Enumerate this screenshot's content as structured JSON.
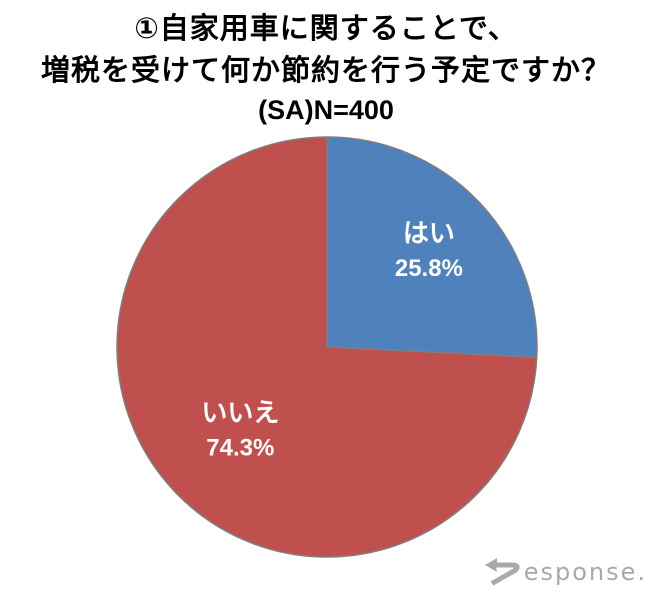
{
  "title": {
    "line1": "①自家用車に関することで、",
    "line2": "増税を受けて何か節約を行う予定ですか？",
    "line3": "(SA)N=400"
  },
  "chart_data": {
    "type": "pie",
    "title": "①自家用車に関することで、増税を受けて何か節約を行う予定ですか？(SA)N=400",
    "sample_size_label": "(SA)N=400",
    "n": 400,
    "labels": [
      "はい",
      "いいえ"
    ],
    "values": [
      25.8,
      74.3
    ],
    "value_labels": [
      "25.8%",
      "74.3%"
    ],
    "unit": "%",
    "start_angle_deg": 0,
    "direction": "clockwise",
    "colors": [
      "#4F81BD",
      "#C0504D"
    ],
    "slice_border_color": "#7F7F7F",
    "label_text_color": "#FFFFFF",
    "legend": "none",
    "data_label_style": "name and percent inside slices"
  },
  "watermark": {
    "full_text": "Response.",
    "text_after_r": "esponse.",
    "color": "#a9a9a9"
  }
}
